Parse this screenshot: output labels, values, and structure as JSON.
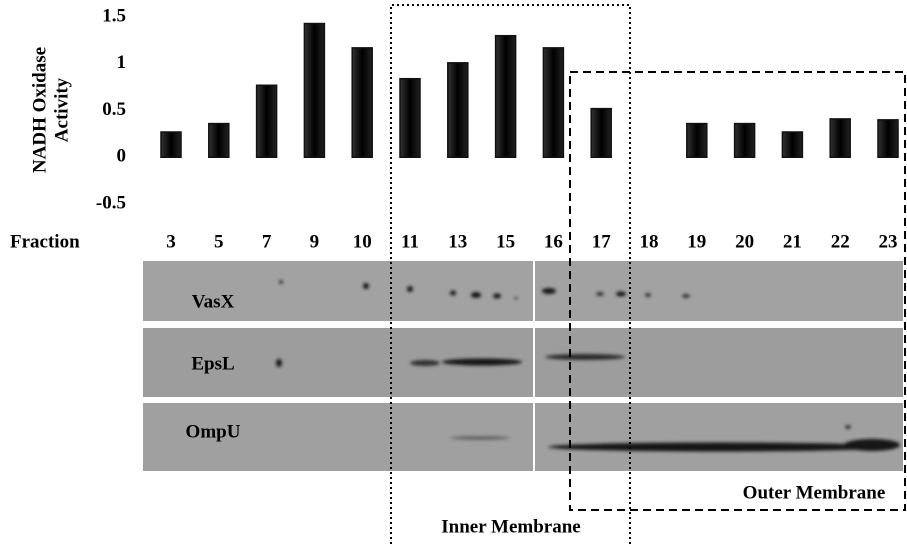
{
  "chart_data": {
    "type": "bar",
    "ylabel": [
      "NADH Oxidase",
      "Activity"
    ],
    "xlabel": "Fraction",
    "categories": [
      "3",
      "5",
      "7",
      "9",
      "10",
      "11",
      "13",
      "15",
      "16",
      "17",
      "18",
      "19",
      "20",
      "21",
      "22",
      "23"
    ],
    "values": [
      0.27,
      0.36,
      0.77,
      1.43,
      1.17,
      0.84,
      1.01,
      1.3,
      1.17,
      0.52,
      0,
      0.36,
      0.36,
      0.27,
      0.41,
      0.4
    ],
    "color": "#111111",
    "ylim": [
      -0.5,
      1.5
    ],
    "yticks": [
      1.5,
      1,
      0.5,
      0,
      -0.5
    ],
    "grid": false,
    "blot_rows": [
      "VasX",
      "EpsL",
      "OmpU"
    ],
    "annotations": [
      "Inner Membrane",
      "Outer Membrane"
    ]
  }
}
